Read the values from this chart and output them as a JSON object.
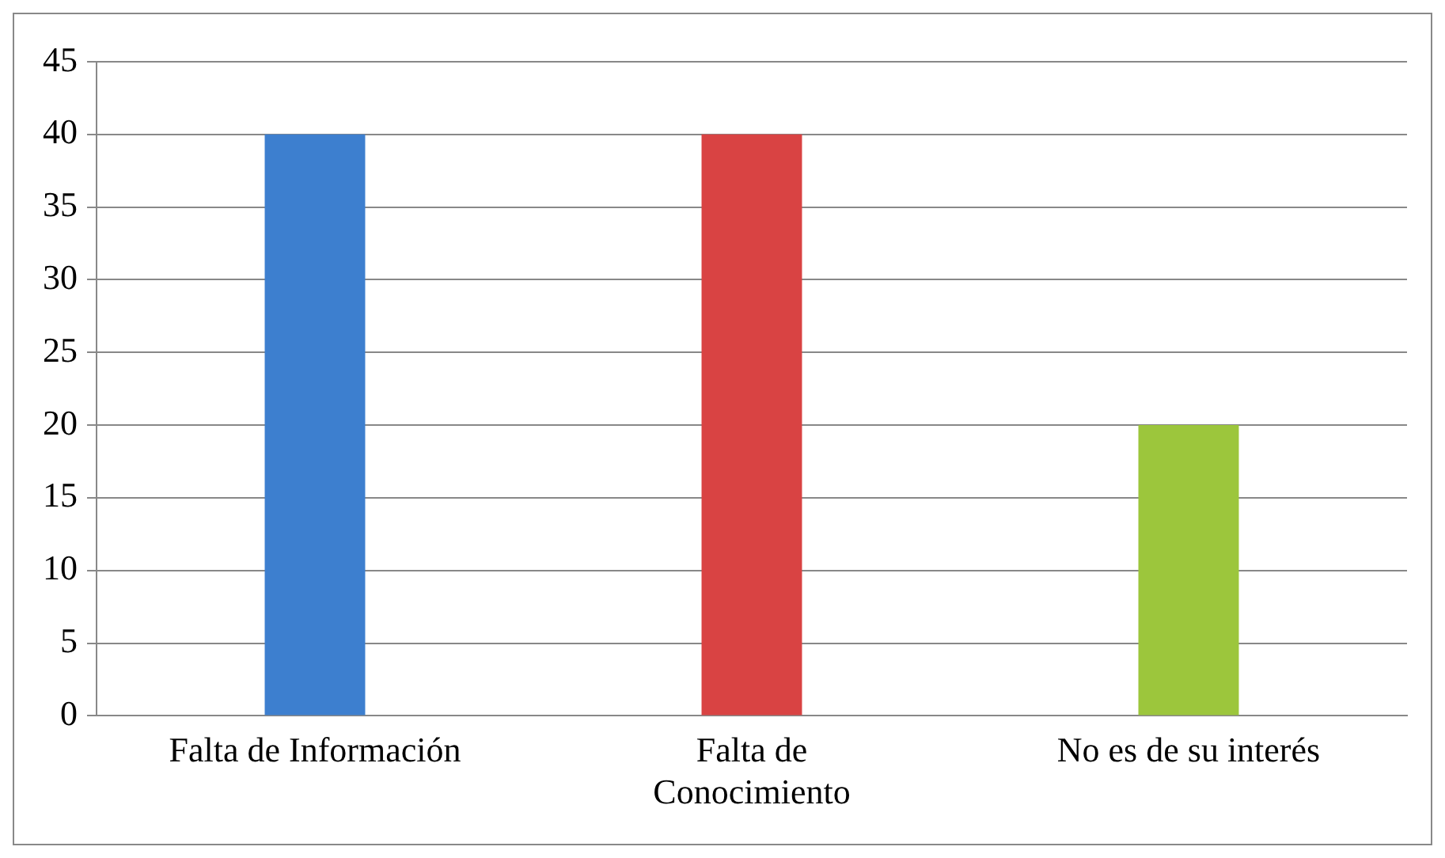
{
  "chart_data": {
    "type": "bar",
    "categories": [
      "Falta de Información",
      "Falta de Conocimiento",
      "No es de su interés"
    ],
    "values": [
      40,
      40,
      20
    ],
    "colors": [
      "#3d7fcf",
      "#d94343",
      "#9cc63c"
    ],
    "ylim": [
      0,
      45
    ],
    "yticks": [
      0,
      5,
      10,
      15,
      20,
      25,
      30,
      35,
      40,
      45
    ],
    "grid": "y",
    "legend": false
  }
}
